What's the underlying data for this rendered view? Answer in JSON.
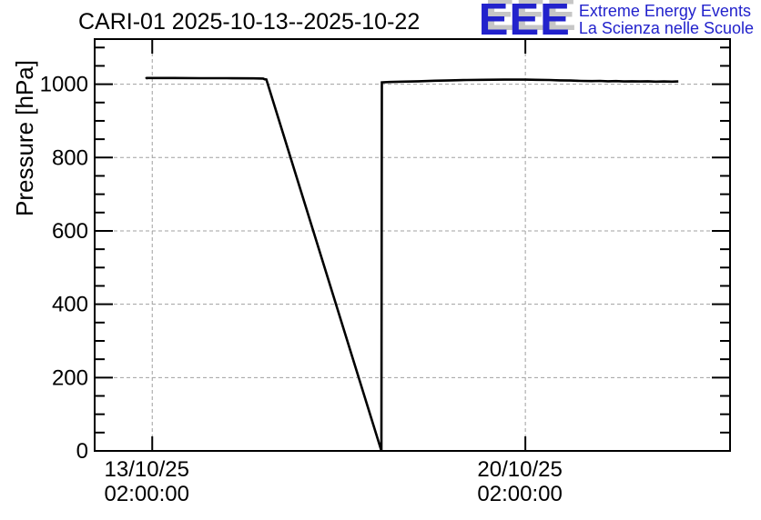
{
  "header": {
    "title": "CARI-01 2025-10-13--2025-10-22",
    "logo": {
      "letters": "EEE",
      "line1": "Extreme Energy Events",
      "line2": "La Scienza nelle Scuole",
      "color": "#2222cc",
      "shadow_color": "#c6c6c6"
    }
  },
  "chart_data": {
    "type": "line",
    "title": "CARI-01 2025-10-13--2025-10-22",
    "station": "CARI-01",
    "date_range": "2025-10-13--2025-10-22",
    "xlabel": "",
    "ylabel": "Pressure [hPa]",
    "ylim": [
      0,
      1123
    ],
    "xlim_days": [
      -1.08,
      10.84
    ],
    "yticks": [
      0,
      200,
      400,
      600,
      800,
      1000
    ],
    "y_minor_step": 50,
    "xticks": [
      {
        "day": 0,
        "label_date": "13/10/25",
        "label_time": "02:00:00"
      },
      {
        "day": 7,
        "label_date": "20/10/25",
        "label_time": "02:00:00"
      }
    ],
    "grid": true,
    "grid_color": "#a0a0a0",
    "frame_color": "#000000",
    "line_color": "#000000",
    "series": [
      {
        "name": "pressure_hpa",
        "points": [
          [
            -0.12,
            1014.5
          ],
          [
            -0.105,
            1017
          ],
          [
            0.4,
            1017
          ],
          [
            0.9,
            1016.5
          ],
          [
            1.4,
            1016.5
          ],
          [
            1.9,
            1016
          ],
          [
            2.08,
            1015.5
          ],
          [
            2.11,
            1013.5
          ],
          [
            2.14,
            1013
          ],
          [
            4.3,
            0
          ],
          [
            4.308,
            1005
          ],
          [
            4.45,
            1006
          ],
          [
            4.7,
            1007
          ],
          [
            5.0,
            1008
          ],
          [
            5.3,
            1009.5
          ],
          [
            5.6,
            1010.5
          ],
          [
            5.9,
            1011.5
          ],
          [
            6.2,
            1012
          ],
          [
            6.6,
            1012.5
          ],
          [
            7.0,
            1012.5
          ],
          [
            7.2,
            1012
          ],
          [
            7.45,
            1011.5
          ],
          [
            7.65,
            1010.5
          ],
          [
            7.85,
            1010
          ],
          [
            8.05,
            1009
          ],
          [
            8.25,
            1008.5
          ],
          [
            8.4,
            1009
          ],
          [
            8.55,
            1008
          ],
          [
            8.7,
            1008.5
          ],
          [
            8.85,
            1007.5
          ],
          [
            9.0,
            1008
          ],
          [
            9.15,
            1007.5
          ],
          [
            9.3,
            1008
          ],
          [
            9.45,
            1007
          ],
          [
            9.6,
            1007.5
          ],
          [
            9.75,
            1007
          ],
          [
            9.87,
            1007.5
          ]
        ]
      }
    ]
  }
}
